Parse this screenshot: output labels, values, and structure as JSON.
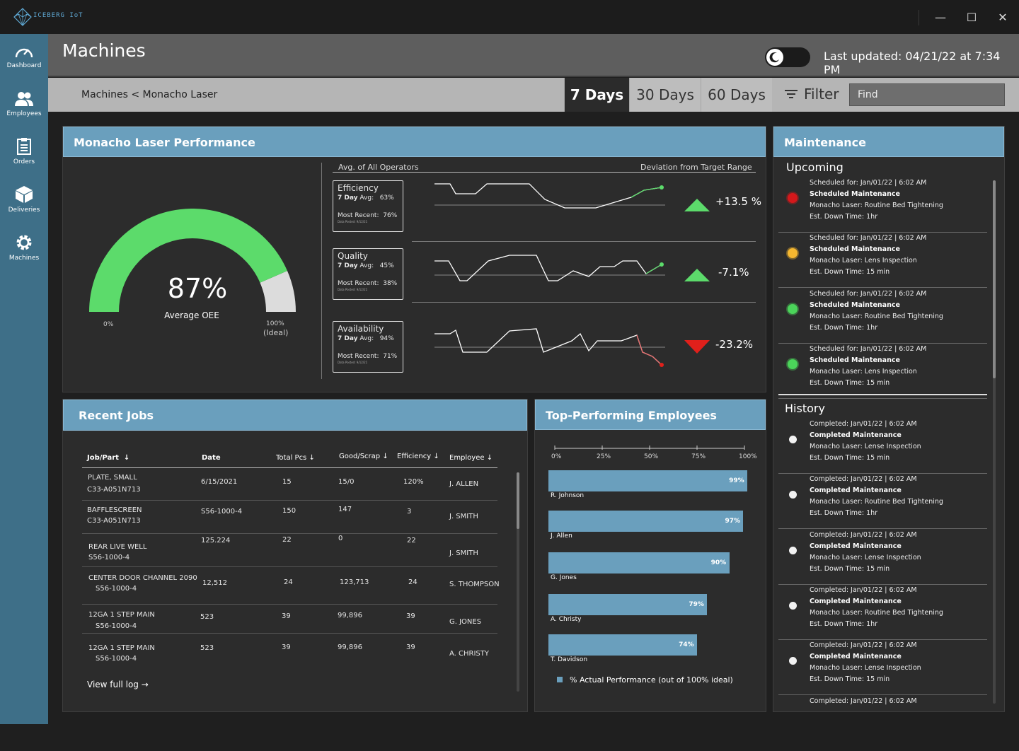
{
  "app": {
    "name": "ICEBERG IoT"
  },
  "window": {
    "minimize": "—",
    "maximize": "☐",
    "close": "✕"
  },
  "sidebar": {
    "items": [
      {
        "label": "Dashboard",
        "icon": "gauge-icon"
      },
      {
        "label": "Employees",
        "icon": "people-icon"
      },
      {
        "label": "Orders",
        "icon": "clipboard-icon"
      },
      {
        "label": "Deliveries",
        "icon": "box-icon"
      },
      {
        "label": "Machines",
        "icon": "gear-icon"
      }
    ]
  },
  "header": {
    "title": "Machines",
    "last_updated": "Last updated: 04/21/22 at 7:34 PM"
  },
  "subbar": {
    "breadcrumb": "Machines < Monacho Laser",
    "ranges": [
      "7 Days",
      "30 Days",
      "60 Days"
    ],
    "active_range": "7 Days",
    "filter_label": "Filter",
    "find_placeholder": "Find"
  },
  "performance": {
    "title": "Monacho Laser Performance",
    "oee_value": "87%",
    "oee_label": "Average OEE",
    "oee_fraction": 0.87,
    "gauge_min": "0%",
    "gauge_max": "100%",
    "gauge_max_note": "(Ideal)",
    "avg_label": "Avg. of All Operators",
    "deviation_label": "Deviation from Target Range",
    "metrics": [
      {
        "name": "Efficiency",
        "avg_label": "7 Day",
        "avg_suffix": "Avg:",
        "avg": "63%",
        "recent_label": "Most Recent:",
        "recent": "76%",
        "posted": "Data Posted: 9/12/21",
        "delta": "+13.5 %",
        "direction": "up"
      },
      {
        "name": "Quality",
        "avg_label": "7 Day",
        "avg_suffix": "Avg:",
        "avg": "45%",
        "recent_label": "Most Recent:",
        "recent": "38%",
        "posted": "Data Posted: 9/12/21",
        "delta": "-7.1%",
        "direction": "up"
      },
      {
        "name": "Availability",
        "avg_label": "7 Day",
        "avg_suffix": "Avg:",
        "avg": "94%",
        "recent_label": "Most Recent:",
        "recent": "71%",
        "posted": "Data Posted: 9/12/21",
        "delta": "-23.2%",
        "direction": "down"
      }
    ],
    "colors": {
      "green": "#5cdb6b",
      "red": "#e0201b",
      "gauge_rest": "#dcdcdc"
    }
  },
  "jobs": {
    "title": "Recent Jobs",
    "columns": [
      "Job/Part",
      "Date",
      "Total Pcs",
      "Good/Scrap",
      "Efficiency",
      "Employee"
    ],
    "rows": [
      {
        "part": "PLATE, SMALL",
        "part2": "C33-A051N713",
        "date": "6/15/2021",
        "total": "15",
        "good": "15/0",
        "eff": "120%",
        "emp": "J. ALLEN"
      },
      {
        "part": "BAFFLESCREEN",
        "part2": "C33-A051N713",
        "date": "S56-1000-4",
        "total": "150",
        "good": "147",
        "eff": "3",
        "emp": "J. SMITH"
      },
      {
        "part": "REAR LIVE WELL",
        "part2": "S56-1000-4",
        "date": "125.224",
        "total": "22",
        "good": "0",
        "eff": "22",
        "emp": "J. SMITH"
      },
      {
        "part": "CENTER DOOR CHANNEL 2090",
        "part2": "S56-1000-4",
        "date": "12,512",
        "total": "24",
        "good": "123,713",
        "eff": "24",
        "emp": "S. THOMPSON"
      },
      {
        "part": "12GA 1 STEP MAIN",
        "part2": "S56-1000-4",
        "date": "523",
        "total": "39",
        "good": "99,896",
        "eff": "39",
        "emp": "G. JONES"
      },
      {
        "part": "12GA 1 STEP MAIN",
        "part2": "S56-1000-4",
        "date": "523",
        "total": "39",
        "good": "99,896",
        "eff": "39",
        "emp": "A. CHRISTY"
      }
    ],
    "view_log": "View full log"
  },
  "employees": {
    "title": "Top-Performing Employees",
    "ticks": [
      "0%",
      "25%",
      "50%",
      "75%",
      "100%"
    ],
    "legend": "% Actual Performance (out of 100% ideal)",
    "chart_data": {
      "type": "bar",
      "categories": [
        "R. Johnson",
        "J. Allen",
        "G. Jones",
        "A. Christy",
        "T. Davidson"
      ],
      "values": [
        99,
        97,
        90,
        79,
        74
      ],
      "labels": [
        "99%",
        "97%",
        "90%",
        "79%",
        "74%"
      ],
      "xlim": [
        0,
        100
      ]
    }
  },
  "maintenance": {
    "title": "Maintenance",
    "upcoming_label": "Upcoming",
    "history_label": "History",
    "upcoming": [
      {
        "when": "Scheduled for: Jan/01/22 | 6:02 AM",
        "type": "Scheduled Maintenance",
        "desc": "Monacho Laser: Routine Bed Tightening",
        "down": "Est. Down Time: 1hr",
        "color": "#d4181b"
      },
      {
        "when": "Scheduled for: Jan/01/22 | 6:02 AM",
        "type": "Scheduled Maintenance",
        "desc": "Monacho Laser: Lens Inspection",
        "down": "Est. Down Time: 15 min",
        "color": "#f5b730"
      },
      {
        "when": "Scheduled for: Jan/01/22 | 6:02 AM",
        "type": "Scheduled Maintenance",
        "desc": "Monacho Laser: Routine Bed Tightening",
        "down": "Est. Down Time: 1hr",
        "color": "#4bd45a"
      },
      {
        "when": "Scheduled for: Jan/01/22 | 6:02 AM",
        "type": "Scheduled Maintenance",
        "desc": "Monacho Laser: Lens Inspection",
        "down": "Est. Down Time: 15 min",
        "color": "#4bd45a"
      }
    ],
    "history": [
      {
        "when": "Completed: Jan/01/22 | 6:02 AM",
        "type": "Completed Maintenance",
        "desc": "Monacho Laser: Lense Inspection",
        "down": "Est. Down Time: 15 min"
      },
      {
        "when": "Completed: Jan/01/22 | 6:02 AM",
        "type": "Completed Maintenance",
        "desc": "Monacho Laser: Routine Bed Tightening",
        "down": "Est. Down Time: 1hr"
      },
      {
        "when": "Completed: Jan/01/22 | 6:02 AM",
        "type": "Completed Maintenance",
        "desc": "Monacho Laser: Lense Inspection",
        "down": "Est. Down Time: 15 min"
      },
      {
        "when": "Completed: Jan/01/22 | 6:02 AM",
        "type": "Completed Maintenance",
        "desc": "Monacho Laser: Routine Bed Tightening",
        "down": "Est. Down Time: 1hr"
      },
      {
        "when": "Completed: Jan/01/22 | 6:02 AM",
        "type": "Completed Maintenance",
        "desc": "Monacho Laser: Lense Inspection",
        "down": "Est. Down Time: 15 min"
      },
      {
        "when": "Completed: Jan/01/22 | 6:02 AM",
        "type": "",
        "desc": "",
        "down": ""
      }
    ]
  }
}
